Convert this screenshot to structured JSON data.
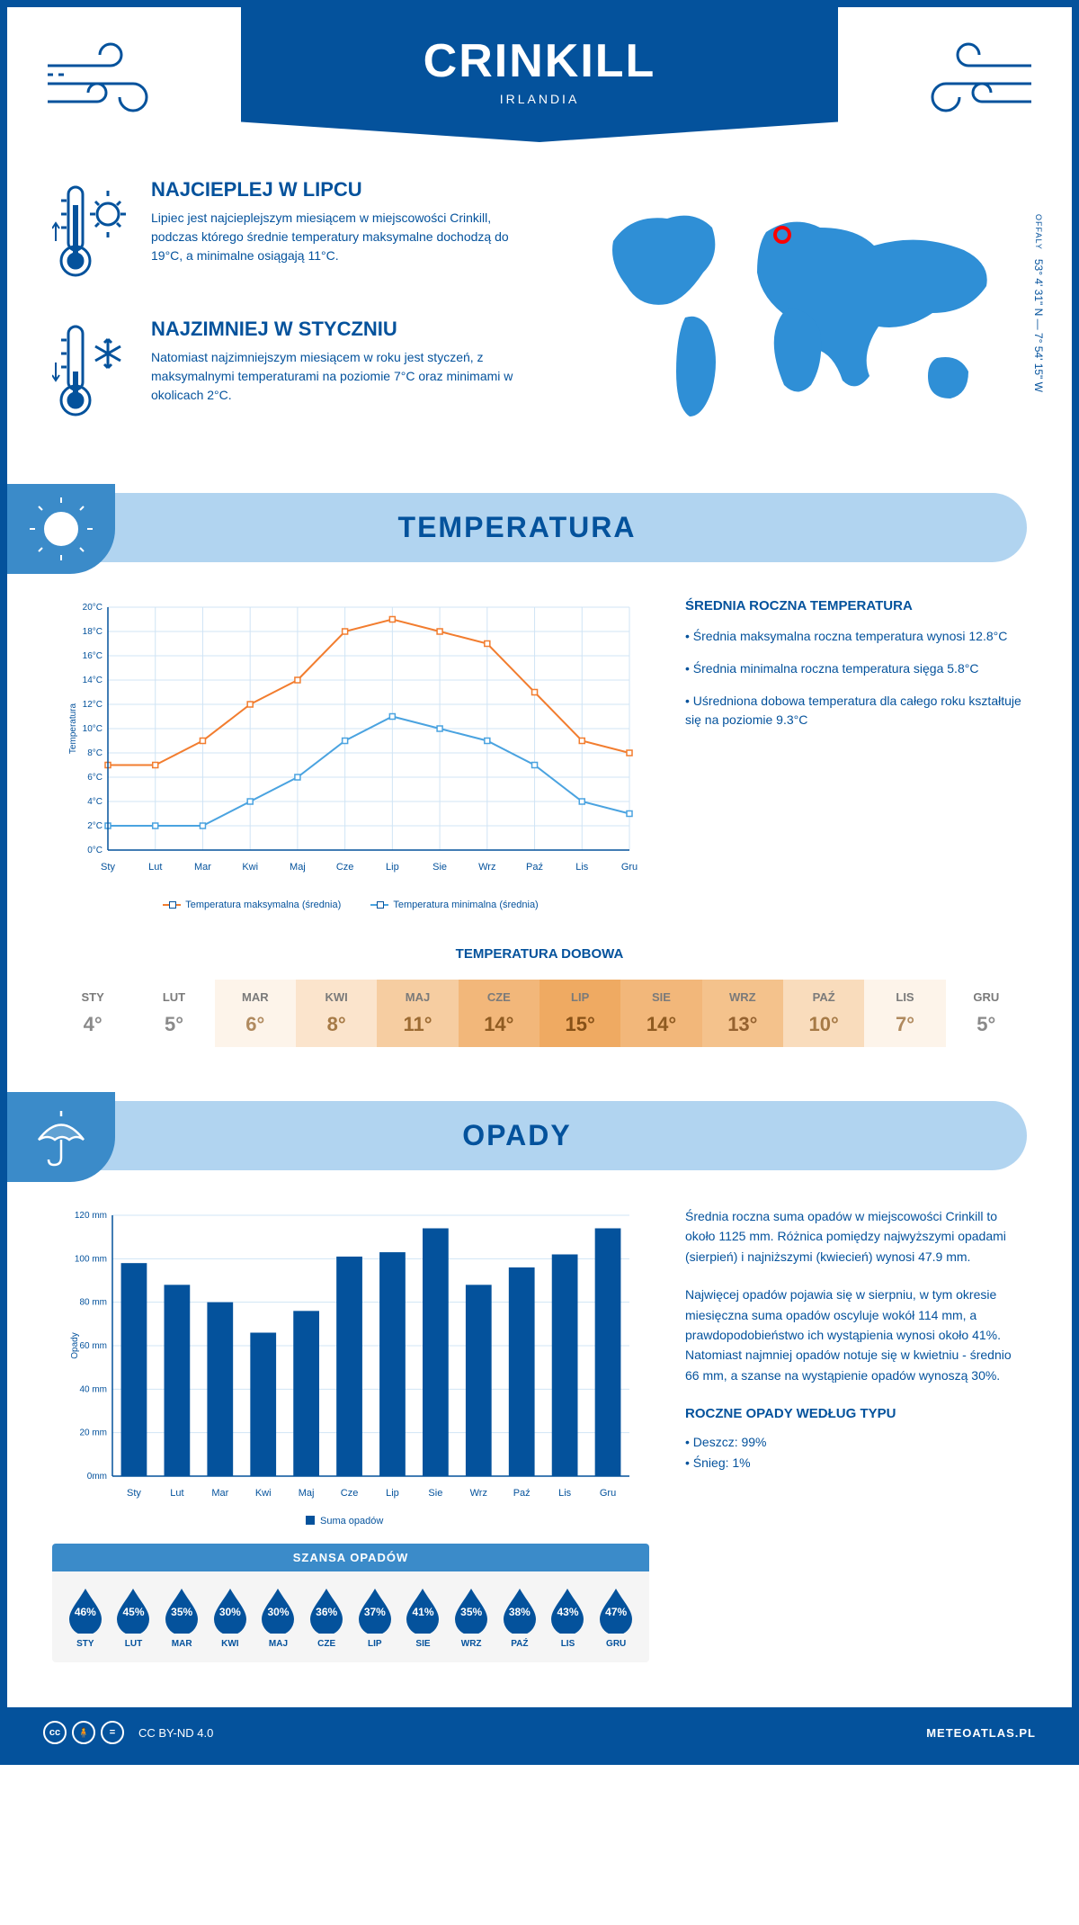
{
  "header": {
    "title": "CRINKILL",
    "country": "IRLANDIA"
  },
  "location": {
    "region": "OFFALY",
    "coords": "53° 4' 31\" N — 7° 54' 15\" W",
    "marker_color": "#ff0000",
    "map_color": "#2f8fd6"
  },
  "colors": {
    "primary": "#04529c",
    "light_blue": "#b1d4f0",
    "mid_blue": "#3b8bc9",
    "grid": "#d0e4f5",
    "orange": "#f27d2f",
    "chart_blue": "#4aa3e0"
  },
  "facts": {
    "warmest": {
      "title": "NAJCIEPLEJ W LIPCU",
      "text": "Lipiec jest najcieplejszym miesiącem w miejscowości Crinkill, podczas którego średnie temperatury maksymalne dochodzą do 19°C, a minimalne osiągają 11°C."
    },
    "coldest": {
      "title": "NAJZIMNIEJ W STYCZNIU",
      "text": "Natomiast najzimniejszym miesiącem w roku jest styczeń, z maksymalnymi temperaturami na poziomie 7°C oraz minimami w okolicach 2°C."
    }
  },
  "temperature": {
    "section_title": "TEMPERATURA",
    "chart": {
      "type": "line",
      "y_label": "Temperatura",
      "months": [
        "Sty",
        "Lut",
        "Mar",
        "Kwi",
        "Maj",
        "Cze",
        "Lip",
        "Sie",
        "Wrz",
        "Paź",
        "Lis",
        "Gru"
      ],
      "ylim": [
        0,
        20
      ],
      "ytick_step": 2,
      "y_ticks": [
        "0°C",
        "2°C",
        "4°C",
        "6°C",
        "8°C",
        "10°C",
        "12°C",
        "14°C",
        "16°C",
        "18°C",
        "20°C"
      ],
      "max_series": {
        "label": "Temperatura maksymalna (średnia)",
        "color": "#f27d2f",
        "values": [
          7,
          7,
          9,
          12,
          14,
          18,
          19,
          18,
          17,
          13,
          9,
          8
        ]
      },
      "min_series": {
        "label": "Temperatura minimalna (średnia)",
        "color": "#4aa3e0",
        "values": [
          2,
          2,
          2,
          4,
          6,
          9,
          11,
          10,
          9,
          7,
          4,
          3
        ]
      },
      "line_width": 2,
      "marker": "square",
      "marker_size": 5,
      "grid_color": "#d0e4f5",
      "background": "#ffffff"
    },
    "annual": {
      "title": "ŚREDNIA ROCZNA TEMPERATURA",
      "bullets": [
        "Średnia maksymalna roczna temperatura wynosi 12.8°C",
        "Średnia minimalna roczna temperatura sięga 5.8°C",
        "Uśredniona dobowa temperatura dla całego roku kształtuje się na poziomie 9.3°C"
      ]
    },
    "daily": {
      "title": "TEMPERATURA DOBOWA",
      "months": [
        "STY",
        "LUT",
        "MAR",
        "KWI",
        "MAJ",
        "CZE",
        "LIP",
        "SIE",
        "WRZ",
        "PAŹ",
        "LIS",
        "GRU"
      ],
      "values": [
        "4°",
        "5°",
        "6°",
        "8°",
        "11°",
        "14°",
        "15°",
        "14°",
        "13°",
        "10°",
        "7°",
        "5°"
      ],
      "cell_colors": [
        "#ffffff",
        "#ffffff",
        "#fdf4ea",
        "#fbe4cc",
        "#f6cda1",
        "#f2b77a",
        "#efaa62",
        "#f2b77a",
        "#f4c28c",
        "#f9dcbc",
        "#fdf4ea",
        "#ffffff"
      ],
      "text_colors": [
        "#8a8a8a",
        "#8a8a8a",
        "#b08a5f",
        "#a67a46",
        "#9b6a32",
        "#8f5b21",
        "#875117",
        "#8f5b21",
        "#956230",
        "#a67a46",
        "#b08a5f",
        "#8a8a8a"
      ]
    }
  },
  "precipitation": {
    "section_title": "OPADY",
    "chart": {
      "type": "bar",
      "y_label": "Opady",
      "months": [
        "Sty",
        "Lut",
        "Mar",
        "Kwi",
        "Maj",
        "Cze",
        "Lip",
        "Sie",
        "Wrz",
        "Paź",
        "Lis",
        "Gru"
      ],
      "values": [
        98,
        88,
        80,
        66,
        76,
        101,
        103,
        114,
        88,
        96,
        102,
        114
      ],
      "ylim": [
        0,
        120
      ],
      "ytick_step": 20,
      "y_ticks": [
        "0mm",
        "20 mm",
        "40 mm",
        "60 mm",
        "80 mm",
        "100 mm",
        "120 mm"
      ],
      "bar_color": "#04529c",
      "bar_width": 0.6,
      "legend_label": "Suma opadów",
      "grid_color": "#d0e4f5"
    },
    "side_text": {
      "p1": "Średnia roczna suma opadów w miejscowości Crinkill to około 1125 mm. Różnica pomiędzy najwyższymi opadami (sierpień) i najniższymi (kwiecień) wynosi 47.9 mm.",
      "p2": "Najwięcej opadów pojawia się w sierpniu, w tym okresie miesięczna suma opadów oscyluje wokół 114 mm, a prawdopodobieństwo ich wystąpienia wynosi około 41%. Natomiast najmniej opadów notuje się w kwietniu - średnio 66 mm, a szanse na wystąpienie opadów wynoszą 30%.",
      "type_title": "ROCZNE OPADY WEDŁUG TYPU",
      "types": [
        "Deszcz: 99%",
        "Śnieg: 1%"
      ]
    },
    "chance": {
      "title": "SZANSA OPADÓW",
      "months": [
        "STY",
        "LUT",
        "MAR",
        "KWI",
        "MAJ",
        "CZE",
        "LIP",
        "SIE",
        "WRZ",
        "PAŹ",
        "LIS",
        "GRU"
      ],
      "values": [
        "46%",
        "45%",
        "35%",
        "30%",
        "30%",
        "36%",
        "37%",
        "41%",
        "35%",
        "38%",
        "43%",
        "47%"
      ],
      "drop_color": "#04529c"
    }
  },
  "footer": {
    "license": "CC BY-ND 4.0",
    "site": "METEOATLAS.PL"
  }
}
